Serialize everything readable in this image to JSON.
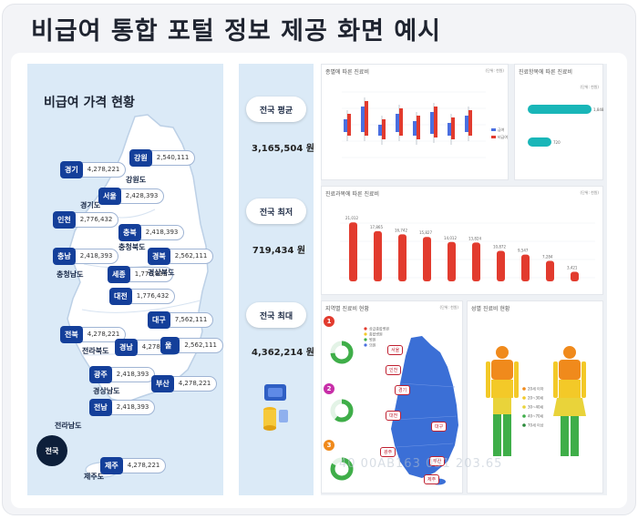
{
  "page_title": "비급여 통합 포털 정보 제공 화면 예시",
  "map": {
    "title": "비급여 가격 현황",
    "regions": [
      {
        "tag": "경기",
        "value": "4,278,221"
      },
      {
        "tag": "강원",
        "value": "2,540,111"
      },
      {
        "tag": "서울",
        "value": "2,428,393"
      },
      {
        "tag": "인천",
        "value": "2,776,432"
      },
      {
        "tag": "충북",
        "value": "2,418,393"
      },
      {
        "tag": "충남",
        "value": "2,418,393"
      },
      {
        "tag": "경북",
        "value": "2,562,111"
      },
      {
        "tag": "세종",
        "value": "1,776,432"
      },
      {
        "tag": "대전",
        "value": "1,776,432"
      },
      {
        "tag": "대구",
        "value": "7,562,111"
      },
      {
        "tag": "전북",
        "value": "4,278,221"
      },
      {
        "tag": "경남",
        "value": "4,278,221"
      },
      {
        "tag": "울산",
        "value": "2,562,111"
      },
      {
        "tag": "광주",
        "value": "2,418,393"
      },
      {
        "tag": "부산",
        "value": "4,278,221"
      },
      {
        "tag": "전남",
        "value": "2,418,393"
      },
      {
        "tag": "제주",
        "value": "4,278,221"
      }
    ],
    "province_names": [
      "강원도",
      "경기도",
      "충청북도",
      "충청남도",
      "경상북도",
      "전라북도",
      "경상남도",
      "전라남도",
      "제주도"
    ],
    "nation_label": "전국"
  },
  "stats": {
    "avg_label": "전국 평균",
    "avg_value": "3,165,504 원",
    "min_label": "전국 최저",
    "min_value": "719,434 원",
    "max_label": "전국 최대",
    "max_value": "4,362,214 원"
  },
  "dashboard": {
    "c1_title": "종별에 따른 진료비",
    "c1_unit": "(단위: 천원)",
    "c1_legend": [
      "급여",
      "비급여"
    ],
    "c2_title": "진료항목에 따른 진료비",
    "c2_unit": "(단위: 천원)",
    "c2_values": [
      "1,848",
      "720"
    ],
    "c3_title": "진료과목에 따른 진료비",
    "c3_unit": "(단위: 천원)",
    "c3_values": [
      "21,012",
      "17,865",
      "16,742",
      "15,827",
      "14,012",
      "13,824",
      "10,872",
      "9,547",
      "7,284",
      "3,421"
    ],
    "c4_title": "지역별 진료비 현황",
    "c4_unit": "(단위: 천원)",
    "c4_badges": [
      "1",
      "2",
      "3"
    ],
    "c4_legend": [
      "상급종합병원",
      "종합병원",
      "병원",
      "의원"
    ],
    "c4_labels": [
      "서울",
      "인천",
      "경기",
      "대전",
      "대구",
      "광주",
      "부산",
      "제주"
    ],
    "c5_title": "성별 진료비 현황",
    "c5_legend": [
      "20세 이하",
      "20~30세",
      "30~40세",
      "40~70세",
      "70세 이상"
    ],
    "ghost_text": "40 00AB163   051 203.65"
  },
  "colors": {
    "navy": "#143f9a",
    "red": "#e23b2e",
    "teal": "#19b6b8",
    "blue": "#4a6fe0",
    "orange": "#f08a1c",
    "yellow": "#f3c928",
    "green": "#3fae49"
  }
}
